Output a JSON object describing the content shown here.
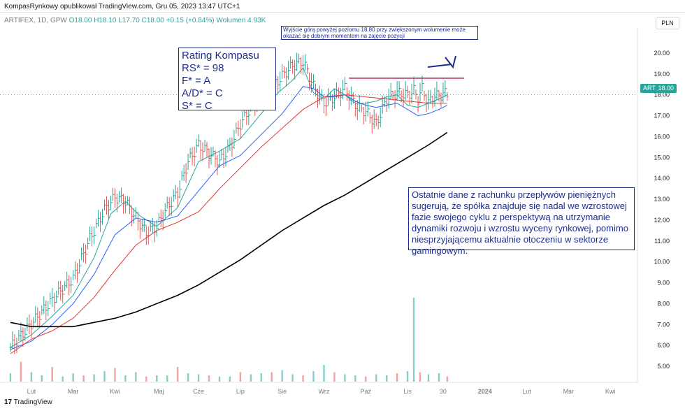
{
  "header": {
    "publisher": "KompasRynkowy opublikował TradingView.com, Gru 05, 2023 13:47 UTC+1",
    "symbol_info": "ARTIFEX, 1D, GPW",
    "ohlc": "O18.00 H18.10 L17.70 C18.00 +0.15 (+0.84%)",
    "volume": "Wolumen 4.93K",
    "currency": "PLN"
  },
  "price_tag": {
    "symbol": "ART",
    "price": "18.00"
  },
  "annotations": {
    "rating_title": "Rating Kompasu",
    "rating_lines": [
      "RS* = 98",
      "F* = A",
      "A/D* = C",
      "S* = C"
    ],
    "top_note": "Wyjście górą powyżej poziomu 18.80 przy zwiększonym wolumenie może okazać się dobrym momentem na zajęcie pozycji",
    "comment": "Ostatnie dane z rachunku przepływów pieniężnych sugerują, że spółka znajduje się nadal we wzrostowej fazie swojego cyklu z perspektywą na utrzymanie dynamiki rozwoju i wzrostu wyceny rynkowej, pomimo niesprzyjającemu aktualnie otoczeniu w sektorze gamingowym."
  },
  "footer": {
    "brand": "TradingView"
  },
  "colors": {
    "up": "#26a69a",
    "down": "#ef5350",
    "ma_short": "#26a69a",
    "ma_mid": "#2962ff",
    "ma_long": "#e53935",
    "ma_200": "#000000",
    "resistance": "#c2185b",
    "annotation": "#1f2d8a"
  },
  "chart_data": {
    "type": "line",
    "title": "",
    "xlabel": "",
    "ylabel": "",
    "ylim": [
      4.6,
      20.6
    ],
    "y_ticks": [
      "5.00",
      "6.00",
      "7.00",
      "8.00",
      "9.00",
      "10.00",
      "11.00",
      "12.00",
      "13.00",
      "14.00",
      "15.00",
      "16.00",
      "17.00",
      "18.00",
      "19.00",
      "20.00"
    ],
    "x_ticks": [
      "Lut",
      "Mar",
      "Kwi",
      "Maj",
      "Cze",
      "Lip",
      "Sie",
      "Wrz",
      "Paź",
      "Lis",
      "30",
      "2024",
      "Lut",
      "Mar",
      "Kwi"
    ],
    "x_tick_idx": [
      10,
      30,
      50,
      71,
      90,
      110,
      130,
      150,
      170,
      190,
      207,
      227,
      247,
      267,
      287
    ],
    "x_range": [
      -5,
      300
    ],
    "close_series": {
      "name": "ARTIFEX close (approx.)",
      "x": [
        0,
        8,
        15,
        22,
        30,
        38,
        45,
        50,
        55,
        60,
        65,
        70,
        75,
        80,
        85,
        90,
        95,
        100,
        105,
        110,
        115,
        120,
        125,
        130,
        135,
        140,
        145,
        150,
        155,
        160,
        163,
        166,
        170,
        175,
        180,
        185,
        190,
        193,
        195,
        197,
        200,
        203,
        205,
        207,
        209
      ],
      "values": [
        5.9,
        6.8,
        7.6,
        8.4,
        9.2,
        11.1,
        12.5,
        13.1,
        12.9,
        12.1,
        11.4,
        11.7,
        12.6,
        13.3,
        14.8,
        15.6,
        15.2,
        14.8,
        15.5,
        16.6,
        17.4,
        18.0,
        18.3,
        18.9,
        19.4,
        19.6,
        18.4,
        17.6,
        17.9,
        18.3,
        17.8,
        17.4,
        17.2,
        16.6,
        17.8,
        18.1,
        18.0,
        18.2,
        17.8,
        18.3,
        17.6,
        18.0,
        17.9,
        18.1,
        18.0
      ]
    },
    "series": [
      {
        "x": [
          0,
          10,
          20,
          30,
          40,
          48,
          55,
          62,
          70,
          80,
          90,
          100,
          110,
          120,
          128,
          135,
          140,
          145,
          150,
          155,
          160,
          165,
          170,
          175,
          180,
          185,
          190,
          195,
          200,
          205,
          209
        ],
        "values": [
          5.9,
          6.5,
          7.4,
          8.4,
          10.2,
          12.3,
          12.9,
          12.2,
          11.7,
          12.6,
          14.8,
          15.3,
          15.9,
          17.1,
          18.1,
          18.7,
          19.3,
          18.1,
          17.8,
          18.3,
          18.0,
          17.6,
          17.6,
          17.7,
          17.9,
          18.0,
          17.5,
          17.4,
          17.6,
          17.8,
          18.0
        ]
      },
      {
        "x": [
          0,
          10,
          20,
          30,
          40,
          50,
          60,
          70,
          80,
          90,
          100,
          110,
          120,
          130,
          140,
          145,
          150,
          155,
          160,
          165,
          170,
          175,
          180,
          185,
          190,
          195,
          200,
          205,
          209
        ],
        "values": [
          5.8,
          6.2,
          7.0,
          8.0,
          9.4,
          11.3,
          12.1,
          11.9,
          12.2,
          13.4,
          14.6,
          15.1,
          16.1,
          17.1,
          18.4,
          18.3,
          17.9,
          17.9,
          18.0,
          17.7,
          17.5,
          17.4,
          17.5,
          17.6,
          17.3,
          17.0,
          17.1,
          17.3,
          17.5
        ]
      },
      {
        "x": [
          0,
          10,
          20,
          30,
          40,
          50,
          60,
          70,
          80,
          90,
          100,
          110,
          120,
          130,
          140,
          150,
          160,
          170,
          180,
          190,
          200,
          209
        ],
        "values": [
          5.6,
          6.3,
          6.7,
          7.3,
          8.3,
          9.6,
          10.8,
          11.5,
          11.9,
          12.4,
          13.5,
          14.5,
          15.5,
          16.4,
          17.3,
          17.9,
          18.0,
          17.9,
          17.8,
          17.7,
          17.6,
          17.6
        ]
      },
      {
        "x": [
          0,
          10,
          20,
          30,
          40,
          50,
          60,
          70,
          80,
          90,
          100,
          110,
          120,
          130,
          140,
          150,
          160,
          170,
          180,
          190,
          200,
          209
        ],
        "values": [
          7.1,
          6.9,
          6.9,
          6.9,
          7.1,
          7.3,
          7.6,
          8.0,
          8.4,
          8.9,
          9.5,
          10.1,
          10.8,
          11.5,
          12.1,
          12.7,
          13.2,
          13.8,
          14.4,
          15.0,
          15.6,
          16.2
        ]
      }
    ],
    "resistance_level": 18.8,
    "resistance_x": [
      162,
      217
    ],
    "volume": {
      "x": [
        0,
        5,
        10,
        15,
        20,
        25,
        30,
        35,
        40,
        45,
        50,
        55,
        60,
        65,
        70,
        75,
        80,
        85,
        90,
        95,
        100,
        105,
        110,
        115,
        120,
        125,
        130,
        135,
        140,
        145,
        150,
        155,
        160,
        165,
        170,
        175,
        180,
        185,
        190,
        193,
        196,
        200,
        205,
        209
      ],
      "values": [
        0.8,
        1.9,
        0.9,
        0.6,
        1.4,
        0.5,
        0.8,
        0.6,
        0.7,
        1.0,
        1.3,
        0.6,
        0.9,
        0.5,
        0.6,
        0.6,
        1.4,
        0.8,
        0.7,
        0.6,
        0.5,
        0.5,
        0.9,
        0.7,
        0.8,
        0.9,
        1.1,
        0.7,
        0.6,
        1.0,
        1.6,
        0.9,
        0.7,
        0.6,
        0.5,
        0.7,
        0.6,
        0.8,
        1.0,
        8.0,
        0.9,
        0.7,
        0.8,
        0.5
      ],
      "max": 8.0
    },
    "grid": false,
    "legend": "top-left"
  }
}
